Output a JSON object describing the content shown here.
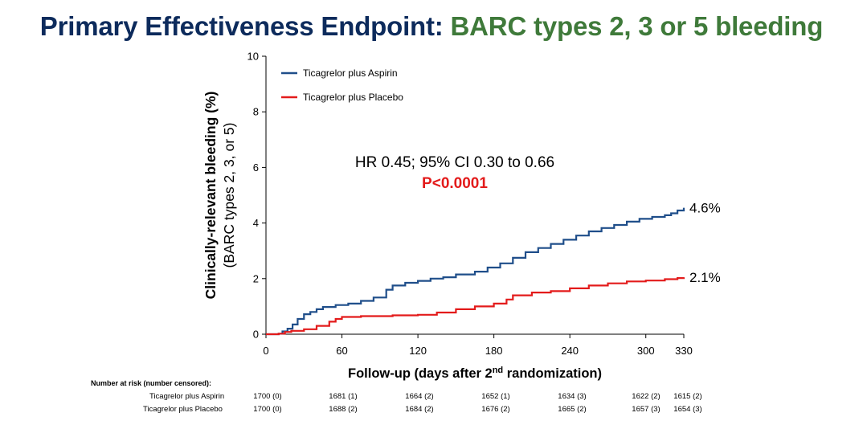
{
  "title": {
    "part1": "Primary Effectiveness Endpoint: ",
    "part2": "BARC types 2, 3 or 5 bleeding",
    "color1": "#0d2b5c",
    "color2": "#3f7a3a"
  },
  "chart_data": {
    "type": "line",
    "xlabel_main": "Follow-up (days after 2",
    "xlabel_sup": "nd",
    "xlabel_end": " randomization)",
    "ylabel_line1": "Clinically-relevant bleeding (%)",
    "ylabel_line2": "(BARC types 2, 3, or 5)",
    "xlim": [
      0,
      330
    ],
    "ylim": [
      0,
      10
    ],
    "x_ticks": [
      0,
      60,
      120,
      180,
      240,
      300,
      330
    ],
    "y_ticks": [
      0,
      2,
      4,
      6,
      8,
      10
    ],
    "legend_position": "top-left",
    "annotation_hr": "HR 0.45; 95% CI 0.30 to 0.66",
    "annotation_p": "P<0.0001",
    "series": [
      {
        "name": "Ticagrelor plus Aspirin",
        "color": "#1f4e8a",
        "end_label": "4.6%",
        "points": [
          [
            0,
            0
          ],
          [
            10,
            0.02
          ],
          [
            13,
            0.1
          ],
          [
            17,
            0.2
          ],
          [
            21,
            0.35
          ],
          [
            25,
            0.55
          ],
          [
            30,
            0.72
          ],
          [
            35,
            0.8
          ],
          [
            40,
            0.9
          ],
          [
            45,
            0.98
          ],
          [
            55,
            1.05
          ],
          [
            65,
            1.1
          ],
          [
            75,
            1.2
          ],
          [
            85,
            1.32
          ],
          [
            95,
            1.6
          ],
          [
            100,
            1.75
          ],
          [
            110,
            1.85
          ],
          [
            120,
            1.92
          ],
          [
            130,
            2.0
          ],
          [
            140,
            2.05
          ],
          [
            150,
            2.15
          ],
          [
            165,
            2.25
          ],
          [
            175,
            2.4
          ],
          [
            185,
            2.55
          ],
          [
            195,
            2.75
          ],
          [
            205,
            2.95
          ],
          [
            215,
            3.1
          ],
          [
            225,
            3.25
          ],
          [
            235,
            3.4
          ],
          [
            245,
            3.55
          ],
          [
            255,
            3.7
          ],
          [
            265,
            3.82
          ],
          [
            275,
            3.93
          ],
          [
            285,
            4.05
          ],
          [
            295,
            4.15
          ],
          [
            305,
            4.22
          ],
          [
            315,
            4.28
          ],
          [
            320,
            4.35
          ],
          [
            325,
            4.45
          ],
          [
            330,
            4.55
          ]
        ]
      },
      {
        "name": "Ticagrelor plus Placebo",
        "color": "#e31b1b",
        "end_label": "2.1%",
        "points": [
          [
            0,
            0
          ],
          [
            10,
            0.02
          ],
          [
            15,
            0.08
          ],
          [
            20,
            0.12
          ],
          [
            30,
            0.18
          ],
          [
            40,
            0.3
          ],
          [
            50,
            0.45
          ],
          [
            55,
            0.55
          ],
          [
            60,
            0.62
          ],
          [
            75,
            0.65
          ],
          [
            100,
            0.68
          ],
          [
            120,
            0.7
          ],
          [
            135,
            0.78
          ],
          [
            150,
            0.9
          ],
          [
            165,
            1.0
          ],
          [
            180,
            1.1
          ],
          [
            190,
            1.25
          ],
          [
            195,
            1.4
          ],
          [
            210,
            1.5
          ],
          [
            225,
            1.55
          ],
          [
            240,
            1.65
          ],
          [
            255,
            1.75
          ],
          [
            270,
            1.83
          ],
          [
            285,
            1.9
          ],
          [
            300,
            1.93
          ],
          [
            315,
            1.98
          ],
          [
            325,
            2.02
          ],
          [
            330,
            2.05
          ]
        ]
      }
    ]
  },
  "risk_table": {
    "header": "Number at risk (number censored):",
    "rows": [
      {
        "label": "Ticagrelor plus Aspirin",
        "values": [
          "1700 (0)",
          "1681 (1)",
          "1664 (2)",
          "1652 (1)",
          "1634 (3)",
          "1622 (2)",
          "1615 (2)"
        ]
      },
      {
        "label": "Ticagrelor plus Placebo",
        "values": [
          "1700 (0)",
          "1688 (2)",
          "1684 (2)",
          "1676 (2)",
          "1665 (2)",
          "1657 (3)",
          "1654 (3)"
        ]
      }
    ]
  }
}
